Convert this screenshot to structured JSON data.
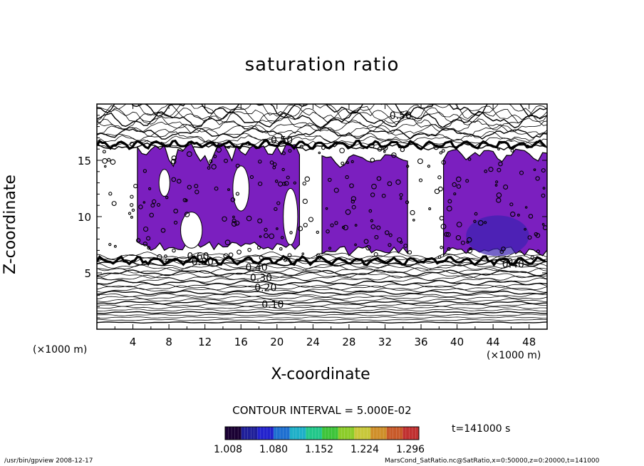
{
  "chart_data": {
    "type": "contour",
    "title": "saturation ratio",
    "xlabel": "X-coordinate",
    "ylabel": "Z-coordinate",
    "x_unit": "(×1000 m)",
    "xlim": [
      0,
      50
    ],
    "ylim": [
      0,
      20
    ],
    "x_ticks": [
      "4",
      "8",
      "12",
      "16",
      "20",
      "24",
      "28",
      "32",
      "36",
      "40",
      "44",
      "48"
    ],
    "y_ticks": [
      "5",
      "10",
      "15"
    ],
    "contour_interval": "CONTOUR INTERVAL = 5.000E-02",
    "contour_labels": [
      {
        "label": "0.10",
        "x": 18.3,
        "z": 2.2
      },
      {
        "label": "0.20",
        "x": 17.5,
        "z": 3.7
      },
      {
        "label": "0.30",
        "x": 17.0,
        "z": 4.6
      },
      {
        "label": "0.40",
        "x": 16.5,
        "z": 5.5
      },
      {
        "label": "0.60",
        "x": 10.0,
        "z": 6.5
      },
      {
        "label": "0.80",
        "x": 10.5,
        "z": 6.0
      },
      {
        "label": "0.50",
        "x": 32.5,
        "z": 19.0
      },
      {
        "label": "0.50",
        "x": 19.3,
        "z": 16.8
      },
      {
        "label": "0.40",
        "x": 45.0,
        "z": 5.8
      }
    ],
    "supersaturated_regions": [
      {
        "x_range": [
          4.5,
          22.5
        ],
        "z_range": [
          7.0,
          16.5
        ]
      },
      {
        "x_range": [
          25.0,
          34.5
        ],
        "z_range": [
          6.5,
          15.5
        ]
      },
      {
        "x_range": [
          38.5,
          50.0
        ],
        "z_range": [
          6.5,
          16.0
        ]
      }
    ],
    "colorbar": {
      "ticks": [
        "1.008",
        "1.080",
        "1.152",
        "1.224",
        "1.296"
      ],
      "colors": [
        "#1a0033",
        "#1f1f99",
        "#2222cc",
        "#1e6fd0",
        "#1fb0c8",
        "#22c78a",
        "#3ec43a",
        "#8ccc2a",
        "#c8c83a",
        "#cf8f2a",
        "#c85a2a",
        "#c03030"
      ]
    },
    "fill_color": "#7b1fbf",
    "fill_dark_color": "#3b22b0",
    "time_label": "t=141000 s",
    "footer_left": "/usr/bin/gpview   2008-12-17",
    "footer_right": "MarsCond_SatRatio.nc@SatRatio,x=0:50000,z=0:20000,t=141000"
  }
}
